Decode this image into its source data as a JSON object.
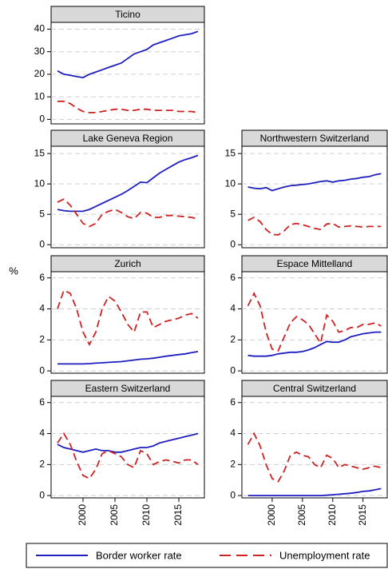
{
  "chart_data": [
    {
      "type": "line",
      "title": "Ticino",
      "ylabel": "%",
      "x": [
        1996,
        1997,
        1998,
        1999,
        2000,
        2001,
        2002,
        2003,
        2004,
        2005,
        2006,
        2007,
        2008,
        2009,
        2010,
        2011,
        2012,
        2013,
        2014,
        2015,
        2016,
        2017,
        2018
      ],
      "xlim": [
        1995,
        2019
      ],
      "ylim": [
        -2,
        43
      ],
      "yticks": [
        0,
        10,
        20,
        30,
        40
      ],
      "grid": true,
      "series": [
        {
          "name": "Border worker rate",
          "color": "#1f1fbf",
          "dash": "solid",
          "values": [
            21.5,
            20,
            19.5,
            19,
            18.5,
            20,
            21,
            22,
            23,
            24,
            25,
            27,
            29,
            30,
            31,
            33,
            34,
            35,
            36,
            37,
            37.5,
            38,
            39
          ]
        },
        {
          "name": "Unemployment rate",
          "color": "#cc2222",
          "dash": "dashed",
          "values": [
            8,
            8,
            7,
            5,
            3.5,
            3,
            3,
            3.5,
            4,
            4.5,
            4.5,
            4,
            4,
            4.5,
            4.5,
            4,
            4,
            4,
            4,
            3.5,
            3.5,
            3.5,
            3
          ]
        }
      ]
    },
    {
      "type": "line",
      "title": "Lake Geneva Region",
      "x": [
        1996,
        1997,
        1998,
        1999,
        2000,
        2001,
        2002,
        2003,
        2004,
        2005,
        2006,
        2007,
        2008,
        2009,
        2010,
        2011,
        2012,
        2013,
        2014,
        2015,
        2016,
        2017,
        2018
      ],
      "xlim": [
        1995,
        2019
      ],
      "ylim": [
        -0.5,
        16.2
      ],
      "yticks": [
        0,
        5,
        10,
        15
      ],
      "grid": true,
      "series": [
        {
          "color": "#1f1fbf",
          "dash": "solid",
          "values": [
            5.8,
            5.6,
            5.5,
            5.5,
            5.5,
            5.8,
            6.3,
            6.8,
            7.3,
            7.8,
            8.3,
            8.9,
            9.6,
            10.3,
            10.2,
            11,
            11.8,
            12.4,
            13,
            13.6,
            14,
            14.3,
            14.7
          ]
        },
        {
          "color": "#cc2222",
          "dash": "dashed",
          "values": [
            7,
            7.5,
            6.5,
            5,
            3.5,
            3,
            3.5,
            5,
            5.5,
            5.8,
            5.3,
            4.6,
            4.3,
            5.3,
            5.2,
            4.5,
            4.5,
            4.8,
            4.8,
            4.7,
            4.6,
            4.5,
            4.2
          ]
        }
      ]
    },
    {
      "type": "line",
      "title": "Northwestern Switzerland",
      "x": [
        1996,
        1997,
        1998,
        1999,
        2000,
        2001,
        2002,
        2003,
        2004,
        2005,
        2006,
        2007,
        2008,
        2009,
        2010,
        2011,
        2012,
        2013,
        2014,
        2015,
        2016,
        2017,
        2018
      ],
      "xlim": [
        1995,
        2019
      ],
      "ylim": [
        -0.5,
        16.2
      ],
      "yticks": [
        0,
        5,
        10,
        15
      ],
      "grid": true,
      "series": [
        {
          "color": "#1f1fbf",
          "dash": "solid",
          "values": [
            9.5,
            9.3,
            9.2,
            9.4,
            8.9,
            9.2,
            9.5,
            9.7,
            9.8,
            9.9,
            10,
            10.2,
            10.4,
            10.5,
            10.3,
            10.5,
            10.6,
            10.8,
            10.9,
            11.1,
            11.2,
            11.5,
            11.7
          ]
        },
        {
          "color": "#cc2222",
          "dash": "dashed",
          "values": [
            4,
            4.5,
            3.8,
            2.5,
            1.7,
            1.6,
            2.3,
            3.3,
            3.5,
            3.3,
            3,
            2.7,
            2.5,
            3.4,
            3.5,
            2.9,
            3,
            3.1,
            3,
            2.9,
            3,
            3,
            3
          ]
        }
      ]
    },
    {
      "type": "line",
      "title": "Zurich",
      "x": [
        1996,
        1997,
        1998,
        1999,
        2000,
        2001,
        2002,
        2003,
        2004,
        2005,
        2006,
        2007,
        2008,
        2009,
        2010,
        2011,
        2012,
        2013,
        2014,
        2015,
        2016,
        2017,
        2018
      ],
      "xlim": [
        1995,
        2019
      ],
      "ylim": [
        -0.15,
        6.4
      ],
      "yticks": [
        0,
        2,
        4,
        6
      ],
      "grid": true,
      "series": [
        {
          "color": "#1f1fbf",
          "dash": "solid",
          "values": [
            0.45,
            0.45,
            0.45,
            0.45,
            0.45,
            0.47,
            0.5,
            0.52,
            0.55,
            0.57,
            0.6,
            0.65,
            0.7,
            0.75,
            0.78,
            0.82,
            0.88,
            0.95,
            1.0,
            1.05,
            1.1,
            1.18,
            1.25
          ]
        },
        {
          "color": "#cc2222",
          "dash": "dashed",
          "values": [
            4,
            5.2,
            5,
            4,
            2.5,
            1.7,
            2.5,
            4,
            4.8,
            4.5,
            3.8,
            3,
            2.5,
            3.8,
            3.8,
            2.8,
            3,
            3.2,
            3.3,
            3.4,
            3.6,
            3.7,
            3.4
          ]
        }
      ]
    },
    {
      "type": "line",
      "title": "Espace Mittelland",
      "x": [
        1996,
        1997,
        1998,
        1999,
        2000,
        2001,
        2002,
        2003,
        2004,
        2005,
        2006,
        2007,
        2008,
        2009,
        2010,
        2011,
        2012,
        2013,
        2014,
        2015,
        2016,
        2017,
        2018
      ],
      "xlim": [
        1995,
        2019
      ],
      "ylim": [
        -0.15,
        6.4
      ],
      "yticks": [
        0,
        2,
        4,
        6
      ],
      "grid": true,
      "series": [
        {
          "color": "#1f1fbf",
          "dash": "solid",
          "values": [
            1,
            0.95,
            0.95,
            0.95,
            1,
            1.1,
            1.15,
            1.2,
            1.2,
            1.25,
            1.35,
            1.5,
            1.7,
            1.9,
            1.85,
            1.85,
            2,
            2.2,
            2.3,
            2.4,
            2.45,
            2.5,
            2.5
          ]
        },
        {
          "color": "#cc2222",
          "dash": "dashed",
          "values": [
            4.2,
            5,
            4.2,
            2.5,
            1.4,
            1.3,
            2.2,
            3.1,
            3.5,
            3.3,
            3,
            2.4,
            1.8,
            3.6,
            3.2,
            2.5,
            2.6,
            2.8,
            2.8,
            3,
            3,
            3.1,
            2.9
          ]
        }
      ]
    },
    {
      "type": "line",
      "title": "Eastern Switzerland",
      "x": [
        1996,
        1997,
        1998,
        1999,
        2000,
        2001,
        2002,
        2003,
        2004,
        2005,
        2006,
        2007,
        2008,
        2009,
        2010,
        2011,
        2012,
        2013,
        2014,
        2015,
        2016,
        2017,
        2018
      ],
      "xlim": [
        1995,
        2019
      ],
      "xticks": [
        2000,
        2005,
        2010,
        2015
      ],
      "ylim": [
        -0.15,
        6.4
      ],
      "yticks": [
        0,
        2,
        4,
        6
      ],
      "grid": true,
      "series": [
        {
          "color": "#1f1fbf",
          "dash": "solid",
          "values": [
            3.3,
            3.1,
            3,
            2.9,
            2.8,
            2.9,
            3,
            2.9,
            2.9,
            2.8,
            2.8,
            2.9,
            3,
            3.1,
            3.1,
            3.2,
            3.4,
            3.5,
            3.6,
            3.7,
            3.8,
            3.9,
            4.0
          ]
        },
        {
          "color": "#cc2222",
          "dash": "dashed",
          "values": [
            3.4,
            4,
            3.3,
            2.2,
            1.3,
            1.1,
            1.7,
            2.7,
            2.9,
            2.7,
            2.5,
            2,
            1.8,
            2.9,
            2.7,
            2,
            2.2,
            2.3,
            2.2,
            2.1,
            2.3,
            2.3,
            2.0
          ]
        }
      ]
    },
    {
      "type": "line",
      "title": "Central Switzerland",
      "x": [
        1996,
        1997,
        1998,
        1999,
        2000,
        2001,
        2002,
        2003,
        2004,
        2005,
        2006,
        2007,
        2008,
        2009,
        2010,
        2011,
        2012,
        2013,
        2014,
        2015,
        2016,
        2017,
        2018
      ],
      "xlim": [
        1995,
        2019
      ],
      "xticks": [
        2000,
        2005,
        2010,
        2015
      ],
      "ylim": [
        -0.15,
        6.4
      ],
      "yticks": [
        0,
        2,
        4,
        6
      ],
      "grid": true,
      "series": [
        {
          "color": "#1f1fbf",
          "dash": "solid",
          "values": [
            0,
            0,
            0,
            0,
            0,
            0,
            0,
            0,
            0,
            0,
            0,
            0,
            0,
            0.02,
            0.05,
            0.08,
            0.12,
            0.15,
            0.2,
            0.27,
            0.3,
            0.37,
            0.45
          ]
        },
        {
          "color": "#cc2222",
          "dash": "dashed",
          "values": [
            3.3,
            4,
            3.2,
            2,
            1.1,
            0.9,
            1.6,
            2.6,
            2.8,
            2.6,
            2.5,
            2,
            1.8,
            2.6,
            2.4,
            1.8,
            2,
            1.9,
            1.8,
            1.7,
            1.8,
            1.9,
            1.8
          ]
        }
      ]
    }
  ]
}
